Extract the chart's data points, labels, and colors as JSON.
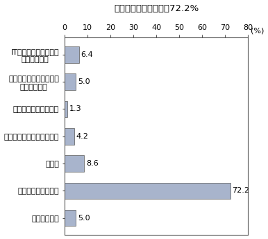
{
  "title": "「何もしていない」が72.2%",
  "categories": [
    "ITサポートセンターを\n利用している",
    "パソコンボランティアを\n利用している",
    "情報機器を借りている",
    "パソコン教室に通っている",
    "その他",
    "何も利用していない",
    "不明・無回答"
  ],
  "values": [
    6.4,
    5.0,
    1.3,
    4.2,
    8.6,
    72.2,
    5.0
  ],
  "bar_color": "#a8b4cc",
  "bar_edgecolor": "#555555",
  "xlim": [
    0,
    80
  ],
  "xticks": [
    0,
    10,
    20,
    30,
    40,
    50,
    60,
    70,
    80
  ],
  "title_fontsize": 9.5,
  "label_fontsize": 8,
  "value_fontsize": 8,
  "tick_fontsize": 8,
  "background_color": "#ffffff"
}
